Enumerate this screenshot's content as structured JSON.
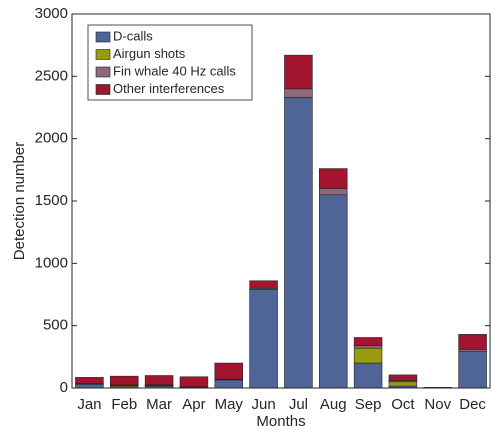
{
  "chart_data": {
    "type": "bar",
    "stacked": true,
    "x_label": "Months",
    "y_label": "Detection number",
    "categories": [
      "Jan",
      "Feb",
      "Mar",
      "Apr",
      "May",
      "Jun",
      "Jul",
      "Aug",
      "Sep",
      "Oct",
      "Nov",
      "Dec"
    ],
    "series": [
      {
        "name": "D-calls",
        "color": "#4f6597",
        "values": [
          30,
          10,
          15,
          5,
          65,
          790,
          2330,
          1550,
          200,
          15,
          3,
          295
        ]
      },
      {
        "name": "Airgun shots",
        "color": "#9a9a12",
        "values": [
          0,
          10,
          5,
          0,
          0,
          0,
          0,
          0,
          120,
          35,
          0,
          0
        ]
      },
      {
        "name": "Fin whale 40 Hz calls",
        "color": "#8c6a7c",
        "values": [
          5,
          5,
          5,
          5,
          5,
          10,
          70,
          50,
          20,
          10,
          0,
          15
        ]
      },
      {
        "name": "Other interferences",
        "color": "#a3142f",
        "values": [
          50,
          70,
          75,
          80,
          130,
          60,
          270,
          160,
          65,
          45,
          2,
          120
        ]
      }
    ],
    "ylim": [
      0,
      3000
    ],
    "yticks": [
      0,
      500,
      1000,
      1500,
      2000,
      2500,
      3000
    ],
    "legend": "upper-left"
  }
}
